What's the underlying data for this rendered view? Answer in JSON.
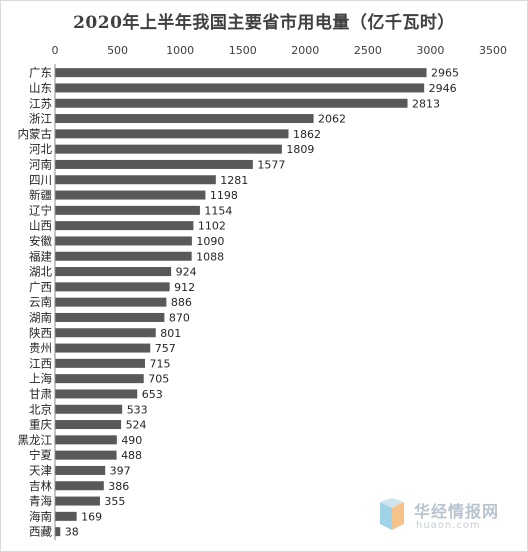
{
  "chart_data": {
    "type": "bar",
    "orientation": "horizontal",
    "title": "2020年上半年我国主要省市用电量（亿千瓦时）",
    "xlim": [
      0,
      3500
    ],
    "xticks": [
      0,
      500,
      1000,
      1500,
      2000,
      2500,
      3000,
      3500
    ],
    "xaxis_position": "top",
    "grid": false,
    "legend": "none",
    "bar_color": "#595959",
    "categories": [
      "广东",
      "山东",
      "江苏",
      "浙江",
      "内蒙古",
      "河北",
      "河南",
      "四川",
      "新疆",
      "辽宁",
      "山西",
      "安徽",
      "福建",
      "湖北",
      "广西",
      "云南",
      "湖南",
      "陕西",
      "贵州",
      "江西",
      "上海",
      "甘肃",
      "北京",
      "重庆",
      "黑龙江",
      "宁夏",
      "天津",
      "吉林",
      "青海",
      "海南",
      "西藏"
    ],
    "values": [
      2965,
      2946,
      2813,
      2062,
      1862,
      1809,
      1577,
      1281,
      1198,
      1154,
      1102,
      1090,
      1088,
      924,
      912,
      886,
      870,
      801,
      757,
      715,
      705,
      653,
      533,
      524,
      490,
      488,
      397,
      386,
      355,
      169,
      38
    ]
  },
  "watermark": {
    "name": "华经情报网",
    "url": "huaon.com"
  }
}
